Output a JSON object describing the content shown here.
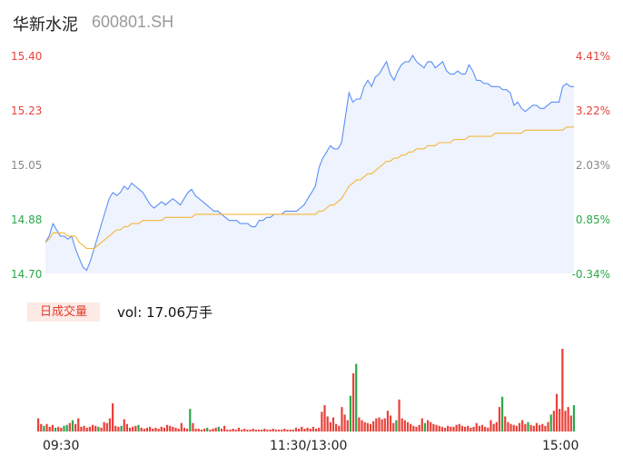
{
  "header": {
    "name": "华新水泥",
    "code": "600801.SH"
  },
  "volume": {
    "badge": "日成交量",
    "text": "vol: 17.06万手"
  },
  "colors": {
    "price": "#5b8ff9",
    "avg": "#f5b73b",
    "up": "#e8413a",
    "down": "#2aa84a",
    "fill": "#eef3fd"
  },
  "chart_data": {
    "type": "line",
    "title": "",
    "y_left_ticks": [
      "15.40",
      "15.23",
      "15.05",
      "14.88",
      "14.70"
    ],
    "y_right_ticks": [
      "4.41%",
      "3.22%",
      "2.03%",
      "0.85%",
      "-0.34%"
    ],
    "x_ticks": [
      "09:30",
      "11:30/13:00",
      "15:00"
    ],
    "ylim": [
      14.7,
      15.4
    ],
    "prev_close": 14.75,
    "series": [
      {
        "name": "",
        "role": "price",
        "values": [
          14.8,
          14.82,
          14.86,
          14.84,
          14.82,
          14.82,
          14.81,
          14.82,
          14.78,
          14.75,
          14.72,
          14.71,
          14.74,
          14.78,
          14.82,
          14.86,
          14.9,
          14.94,
          14.96,
          14.95,
          14.96,
          14.98,
          14.97,
          14.99,
          14.98,
          14.97,
          14.96,
          14.94,
          14.92,
          14.91,
          14.92,
          14.93,
          14.92,
          14.93,
          14.94,
          14.93,
          14.92,
          14.94,
          14.96,
          14.97,
          14.95,
          14.94,
          14.93,
          14.92,
          14.91,
          14.9,
          14.9,
          14.89,
          14.88,
          14.87,
          14.87,
          14.87,
          14.86,
          14.86,
          14.86,
          14.85,
          14.85,
          14.87,
          14.87,
          14.88,
          14.88,
          14.89,
          14.89,
          14.89,
          14.9,
          14.9,
          14.9,
          14.9,
          14.91,
          14.92,
          14.94,
          14.96,
          14.98,
          15.04,
          15.07,
          15.09,
          15.11,
          15.1,
          15.1,
          15.12,
          15.2,
          15.28,
          15.25,
          15.26,
          15.26,
          15.3,
          15.32,
          15.3,
          15.33,
          15.34,
          15.36,
          15.38,
          15.34,
          15.32,
          15.35,
          15.37,
          15.38,
          15.38,
          15.4,
          15.38,
          15.37,
          15.36,
          15.38,
          15.38,
          15.36,
          15.37,
          15.38,
          15.35,
          15.34,
          15.34,
          15.35,
          15.34,
          15.34,
          15.37,
          15.35,
          15.32,
          15.32,
          15.31,
          15.31,
          15.3,
          15.3,
          15.3,
          15.29,
          15.29,
          15.28,
          15.24,
          15.25,
          15.23,
          15.22,
          15.23,
          15.24,
          15.24,
          15.23,
          15.23,
          15.24,
          15.25,
          15.25,
          15.25,
          15.3,
          15.31,
          15.3,
          15.3
        ]
      },
      {
        "name": "",
        "role": "average",
        "values": [
          14.8,
          14.81,
          14.83,
          14.83,
          14.83,
          14.83,
          14.82,
          14.82,
          14.82,
          14.8,
          14.79,
          14.78,
          14.78,
          14.78,
          14.79,
          14.8,
          14.81,
          14.82,
          14.83,
          14.84,
          14.84,
          14.85,
          14.85,
          14.86,
          14.86,
          14.86,
          14.87,
          14.87,
          14.87,
          14.87,
          14.87,
          14.87,
          14.88,
          14.88,
          14.88,
          14.88,
          14.88,
          14.88,
          14.88,
          14.88,
          14.89,
          14.89,
          14.89,
          14.89,
          14.89,
          14.89,
          14.89,
          14.89,
          14.89,
          14.89,
          14.89,
          14.89,
          14.89,
          14.89,
          14.89,
          14.89,
          14.89,
          14.89,
          14.89,
          14.89,
          14.89,
          14.89,
          14.89,
          14.89,
          14.89,
          14.89,
          14.89,
          14.89,
          14.89,
          14.89,
          14.89,
          14.89,
          14.89,
          14.9,
          14.9,
          14.91,
          14.92,
          14.92,
          14.93,
          14.94,
          14.96,
          14.98,
          14.99,
          15.0,
          15.0,
          15.01,
          15.02,
          15.02,
          15.03,
          15.04,
          15.05,
          15.06,
          15.06,
          15.07,
          15.07,
          15.08,
          15.08,
          15.09,
          15.09,
          15.1,
          15.1,
          15.1,
          15.11,
          15.11,
          15.11,
          15.12,
          15.12,
          15.12,
          15.12,
          15.13,
          15.13,
          15.13,
          15.13,
          15.14,
          15.14,
          15.14,
          15.14,
          15.14,
          15.14,
          15.14,
          15.15,
          15.15,
          15.15,
          15.15,
          15.15,
          15.15,
          15.15,
          15.15,
          15.16,
          15.16,
          15.16,
          15.16,
          15.16,
          15.16,
          15.16,
          15.16,
          15.16,
          15.16,
          15.16,
          15.17,
          15.17,
          15.17
        ]
      }
    ],
    "volume_bars": [
      {
        "v": 14,
        "d": "up"
      },
      {
        "v": 8,
        "d": "up"
      },
      {
        "v": 6,
        "d": "down"
      },
      {
        "v": 8,
        "d": "up"
      },
      {
        "v": 5,
        "d": "up"
      },
      {
        "v": 7,
        "d": "up"
      },
      {
        "v": 4,
        "d": "down"
      },
      {
        "v": 5,
        "d": "up"
      },
      {
        "v": 4,
        "d": "up"
      },
      {
        "v": 6,
        "d": "down"
      },
      {
        "v": 7,
        "d": "down"
      },
      {
        "v": 9,
        "d": "up"
      },
      {
        "v": 12,
        "d": "down"
      },
      {
        "v": 8,
        "d": "up"
      },
      {
        "v": 14,
        "d": "up"
      },
      {
        "v": 5,
        "d": "up"
      },
      {
        "v": 6,
        "d": "up"
      },
      {
        "v": 4,
        "d": "up"
      },
      {
        "v": 5,
        "d": "up"
      },
      {
        "v": 7,
        "d": "up"
      },
      {
        "v": 6,
        "d": "up"
      },
      {
        "v": 5,
        "d": "down"
      },
      {
        "v": 4,
        "d": "up"
      },
      {
        "v": 10,
        "d": "up"
      },
      {
        "v": 9,
        "d": "up"
      },
      {
        "v": 14,
        "d": "up"
      },
      {
        "v": 30,
        "d": "up"
      },
      {
        "v": 6,
        "d": "up"
      },
      {
        "v": 5,
        "d": "up"
      },
      {
        "v": 6,
        "d": "down"
      },
      {
        "v": 13,
        "d": "up"
      },
      {
        "v": 8,
        "d": "up"
      },
      {
        "v": 4,
        "d": "up"
      },
      {
        "v": 5,
        "d": "up"
      },
      {
        "v": 6,
        "d": "up"
      },
      {
        "v": 7,
        "d": "down"
      },
      {
        "v": 4,
        "d": "up"
      },
      {
        "v": 3,
        "d": "up"
      },
      {
        "v": 4,
        "d": "up"
      },
      {
        "v": 5,
        "d": "up"
      },
      {
        "v": 3,
        "d": "up"
      },
      {
        "v": 4,
        "d": "up"
      },
      {
        "v": 3,
        "d": "up"
      },
      {
        "v": 5,
        "d": "up"
      },
      {
        "v": 4,
        "d": "up"
      },
      {
        "v": 7,
        "d": "up"
      },
      {
        "v": 6,
        "d": "up"
      },
      {
        "v": 5,
        "d": "up"
      },
      {
        "v": 4,
        "d": "up"
      },
      {
        "v": 3,
        "d": "up"
      },
      {
        "v": 9,
        "d": "up"
      },
      {
        "v": 4,
        "d": "up"
      },
      {
        "v": 3,
        "d": "up"
      },
      {
        "v": 24,
        "d": "down"
      },
      {
        "v": 9,
        "d": "up"
      },
      {
        "v": 3,
        "d": "up"
      },
      {
        "v": 3,
        "d": "up"
      },
      {
        "v": 2,
        "d": "up"
      },
      {
        "v": 3,
        "d": "up"
      },
      {
        "v": 4,
        "d": "down"
      },
      {
        "v": 2,
        "d": "up"
      },
      {
        "v": 3,
        "d": "up"
      },
      {
        "v": 4,
        "d": "up"
      },
      {
        "v": 5,
        "d": "down"
      },
      {
        "v": 3,
        "d": "up"
      },
      {
        "v": 6,
        "d": "up"
      },
      {
        "v": 2,
        "d": "up"
      },
      {
        "v": 2,
        "d": "up"
      },
      {
        "v": 3,
        "d": "up"
      },
      {
        "v": 2,
        "d": "up"
      },
      {
        "v": 4,
        "d": "up"
      },
      {
        "v": 2,
        "d": "up"
      },
      {
        "v": 3,
        "d": "up"
      },
      {
        "v": 2,
        "d": "up"
      },
      {
        "v": 2,
        "d": "up"
      },
      {
        "v": 3,
        "d": "up"
      },
      {
        "v": 2,
        "d": "up"
      },
      {
        "v": 2,
        "d": "up"
      },
      {
        "v": 2,
        "d": "up"
      },
      {
        "v": 3,
        "d": "up"
      },
      {
        "v": 2,
        "d": "up"
      },
      {
        "v": 2,
        "d": "up"
      },
      {
        "v": 3,
        "d": "up"
      },
      {
        "v": 2,
        "d": "up"
      },
      {
        "v": 2,
        "d": "up"
      },
      {
        "v": 2,
        "d": "up"
      },
      {
        "v": 3,
        "d": "up"
      },
      {
        "v": 2,
        "d": "up"
      },
      {
        "v": 2,
        "d": "up"
      },
      {
        "v": 2,
        "d": "up"
      },
      {
        "v": 4,
        "d": "up"
      },
      {
        "v": 3,
        "d": "up"
      },
      {
        "v": 5,
        "d": "up"
      },
      {
        "v": 3,
        "d": "up"
      },
      {
        "v": 4,
        "d": "up"
      },
      {
        "v": 3,
        "d": "up"
      },
      {
        "v": 5,
        "d": "up"
      },
      {
        "v": 3,
        "d": "up"
      },
      {
        "v": 4,
        "d": "up"
      },
      {
        "v": 21,
        "d": "up"
      },
      {
        "v": 28,
        "d": "up"
      },
      {
        "v": 16,
        "d": "up"
      },
      {
        "v": 10,
        "d": "up"
      },
      {
        "v": 15,
        "d": "up"
      },
      {
        "v": 8,
        "d": "up"
      },
      {
        "v": 6,
        "d": "up"
      },
      {
        "v": 26,
        "d": "up"
      },
      {
        "v": 18,
        "d": "up"
      },
      {
        "v": 12,
        "d": "up"
      },
      {
        "v": 38,
        "d": "down"
      },
      {
        "v": 62,
        "d": "up"
      },
      {
        "v": 72,
        "d": "down"
      },
      {
        "v": 15,
        "d": "up"
      },
      {
        "v": 12,
        "d": "up"
      },
      {
        "v": 10,
        "d": "up"
      },
      {
        "v": 9,
        "d": "up"
      },
      {
        "v": 8,
        "d": "up"
      },
      {
        "v": 11,
        "d": "up"
      },
      {
        "v": 14,
        "d": "up"
      },
      {
        "v": 15,
        "d": "up"
      },
      {
        "v": 13,
        "d": "up"
      },
      {
        "v": 14,
        "d": "up"
      },
      {
        "v": 22,
        "d": "up"
      },
      {
        "v": 17,
        "d": "up"
      },
      {
        "v": 9,
        "d": "up"
      },
      {
        "v": 12,
        "d": "down"
      },
      {
        "v": 34,
        "d": "up"
      },
      {
        "v": 14,
        "d": "up"
      },
      {
        "v": 12,
        "d": "up"
      },
      {
        "v": 10,
        "d": "up"
      },
      {
        "v": 8,
        "d": "up"
      },
      {
        "v": 6,
        "d": "up"
      },
      {
        "v": 5,
        "d": "up"
      },
      {
        "v": 7,
        "d": "up"
      },
      {
        "v": 14,
        "d": "up"
      },
      {
        "v": 9,
        "d": "down"
      },
      {
        "v": 12,
        "d": "up"
      },
      {
        "v": 10,
        "d": "up"
      },
      {
        "v": 8,
        "d": "up"
      },
      {
        "v": 7,
        "d": "up"
      },
      {
        "v": 6,
        "d": "up"
      },
      {
        "v": 5,
        "d": "up"
      },
      {
        "v": 4,
        "d": "up"
      },
      {
        "v": 6,
        "d": "up"
      },
      {
        "v": 5,
        "d": "up"
      },
      {
        "v": 5,
        "d": "up"
      },
      {
        "v": 7,
        "d": "up"
      },
      {
        "v": 8,
        "d": "up"
      },
      {
        "v": 6,
        "d": "up"
      },
      {
        "v": 5,
        "d": "up"
      },
      {
        "v": 6,
        "d": "up"
      },
      {
        "v": 4,
        "d": "up"
      },
      {
        "v": 5,
        "d": "up"
      },
      {
        "v": 9,
        "d": "up"
      },
      {
        "v": 6,
        "d": "up"
      },
      {
        "v": 7,
        "d": "up"
      },
      {
        "v": 5,
        "d": "up"
      },
      {
        "v": 4,
        "d": "up"
      },
      {
        "v": 12,
        "d": "up"
      },
      {
        "v": 8,
        "d": "up"
      },
      {
        "v": 10,
        "d": "up"
      },
      {
        "v": 26,
        "d": "up"
      },
      {
        "v": 37,
        "d": "down"
      },
      {
        "v": 16,
        "d": "up"
      },
      {
        "v": 10,
        "d": "up"
      },
      {
        "v": 8,
        "d": "up"
      },
      {
        "v": 7,
        "d": "up"
      },
      {
        "v": 6,
        "d": "up"
      },
      {
        "v": 9,
        "d": "up"
      },
      {
        "v": 12,
        "d": "up"
      },
      {
        "v": 8,
        "d": "up"
      },
      {
        "v": 10,
        "d": "down"
      },
      {
        "v": 7,
        "d": "up"
      },
      {
        "v": 6,
        "d": "up"
      },
      {
        "v": 9,
        "d": "up"
      },
      {
        "v": 7,
        "d": "up"
      },
      {
        "v": 8,
        "d": "up"
      },
      {
        "v": 6,
        "d": "up"
      },
      {
        "v": 10,
        "d": "up"
      },
      {
        "v": 18,
        "d": "down"
      },
      {
        "v": 22,
        "d": "up"
      },
      {
        "v": 40,
        "d": "up"
      },
      {
        "v": 24,
        "d": "up"
      },
      {
        "v": 88,
        "d": "up"
      },
      {
        "v": 22,
        "d": "up"
      },
      {
        "v": 26,
        "d": "up"
      },
      {
        "v": 17,
        "d": "up"
      },
      {
        "v": 28,
        "d": "down"
      }
    ]
  }
}
